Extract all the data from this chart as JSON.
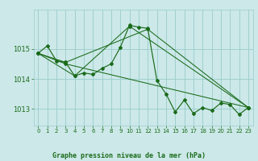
{
  "title": "Graphe pression niveau de la mer (hPa)",
  "bg_color": "#cce8e8",
  "grid_color": "#99cccc",
  "line_color": "#1a6b1a",
  "xlim": [
    -0.5,
    23.5
  ],
  "ylim": [
    1012.45,
    1016.3
  ],
  "yticks": [
    1013,
    1014,
    1015
  ],
  "xticks": [
    0,
    1,
    2,
    3,
    4,
    5,
    6,
    7,
    8,
    9,
    10,
    11,
    12,
    13,
    14,
    15,
    16,
    17,
    18,
    19,
    20,
    21,
    22,
    23
  ],
  "series": [
    [
      0,
      1014.85
    ],
    [
      1,
      1015.1
    ],
    [
      2,
      1014.6
    ],
    [
      3,
      1014.55
    ],
    [
      4,
      1014.1
    ],
    [
      5,
      1014.2
    ],
    [
      6,
      1014.15
    ],
    [
      7,
      1014.35
    ],
    [
      8,
      1014.5
    ],
    [
      9,
      1015.05
    ],
    [
      10,
      1015.78
    ],
    [
      11,
      1015.72
    ],
    [
      12,
      1015.68
    ],
    [
      13,
      1013.95
    ],
    [
      14,
      1013.5
    ],
    [
      15,
      1012.9
    ],
    [
      16,
      1013.3
    ],
    [
      17,
      1012.85
    ],
    [
      18,
      1013.05
    ],
    [
      19,
      1012.95
    ],
    [
      20,
      1013.2
    ],
    [
      21,
      1013.15
    ],
    [
      22,
      1012.82
    ],
    [
      23,
      1013.05
    ]
  ],
  "extra_series": [
    [
      [
        0,
        1014.85
      ],
      [
        3,
        1014.5
      ],
      [
        23,
        1013.05
      ]
    ],
    [
      [
        0,
        1014.85
      ],
      [
        3,
        1014.55
      ],
      [
        12,
        1015.65
      ],
      [
        23,
        1013.05
      ]
    ],
    [
      [
        0,
        1014.85
      ],
      [
        4,
        1014.1
      ],
      [
        10,
        1015.75
      ],
      [
        23,
        1013.05
      ]
    ]
  ]
}
